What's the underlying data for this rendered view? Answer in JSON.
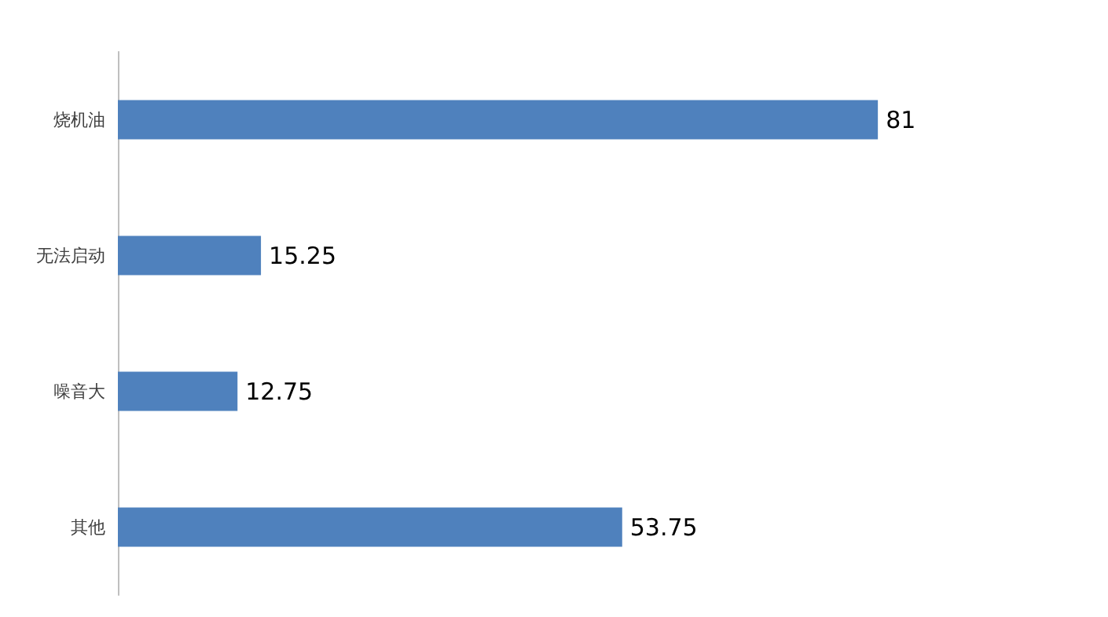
{
  "chart_data": {
    "type": "bar",
    "orientation": "horizontal",
    "categories": [
      "烧机油",
      "无法启动",
      "噪音大",
      "其他"
    ],
    "values": [
      81,
      15.25,
      12.75,
      53.75
    ],
    "color": "#4f81bd",
    "data_labels": true
  }
}
